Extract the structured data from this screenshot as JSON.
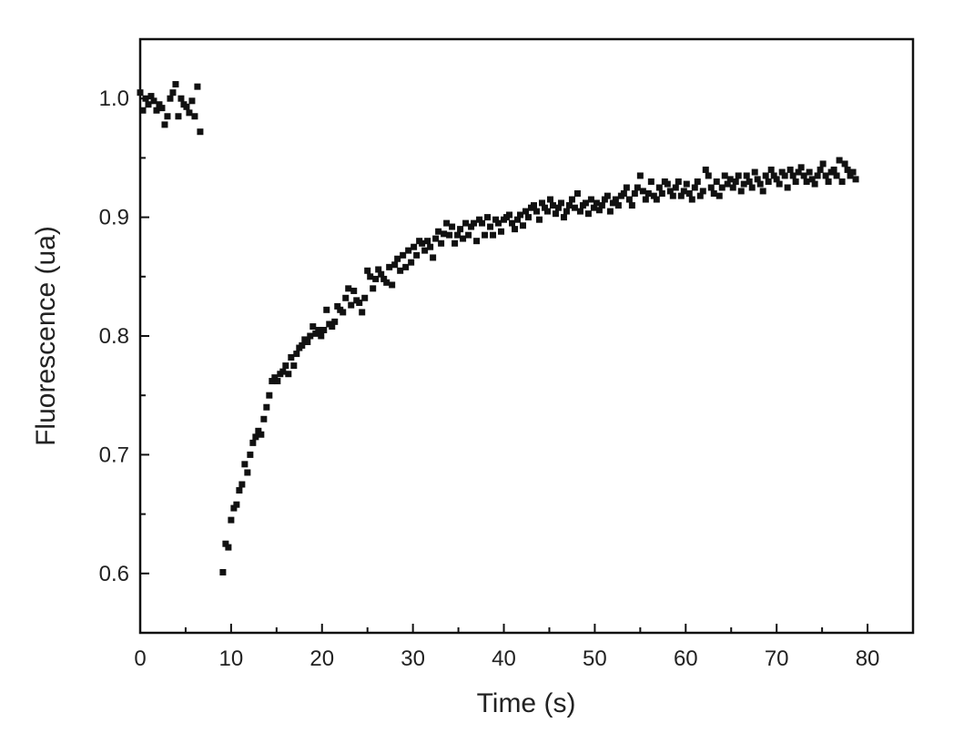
{
  "chart_data": {
    "type": "scatter",
    "title": "",
    "xlabel": "Time (s)",
    "ylabel": "Fluorescence (ua)",
    "xlim": [
      0,
      85
    ],
    "ylim": [
      0.55,
      1.05
    ],
    "x_ticks": [
      0,
      10,
      20,
      30,
      40,
      50,
      60,
      70,
      80
    ],
    "x_tick_labels": [
      "0",
      "10",
      "20",
      "30",
      "40",
      "50",
      "60",
      "70",
      "80"
    ],
    "x_minor_ticks": [
      5,
      15,
      25,
      35,
      45,
      55,
      65,
      75,
      85
    ],
    "y_ticks": [
      0.6,
      0.7,
      0.8,
      0.9,
      1.0
    ],
    "y_tick_labels": [
      "0.6",
      "0.7",
      "0.8",
      "0.9",
      "1.0"
    ],
    "y_minor_ticks": [
      0.65,
      0.75,
      0.85,
      0.95
    ],
    "grid": false,
    "legend": "none",
    "marker": "square",
    "marker_color": "#111111",
    "series": [
      {
        "x": [
          0.0,
          0.3,
          0.6,
          0.9,
          1.2,
          1.5,
          1.8,
          2.1,
          2.4,
          2.7,
          3.0,
          3.3,
          3.6,
          3.9,
          4.2,
          4.5,
          4.8,
          5.1,
          5.4,
          5.7,
          6.0,
          6.3,
          6.6,
          9.1,
          9.4,
          9.7,
          10.0,
          10.3,
          10.6,
          10.9,
          11.2,
          11.5,
          11.8,
          12.1,
          12.4,
          12.7,
          13.0,
          13.3,
          13.6,
          13.9,
          14.2,
          14.5,
          14.8,
          15.1,
          15.4,
          15.7,
          16.0,
          16.3,
          16.6,
          16.9,
          17.2,
          17.5,
          17.8,
          18.1,
          18.4,
          18.7,
          19.0,
          19.3,
          19.6,
          19.9,
          20.2,
          20.5,
          20.8,
          21.1,
          21.4,
          21.7,
          22.0,
          22.3,
          22.6,
          22.9,
          23.2,
          23.5,
          23.8,
          24.1,
          24.4,
          24.7,
          25.0,
          25.3,
          25.6,
          25.9,
          26.2,
          26.5,
          26.8,
          27.1,
          27.4,
          27.7,
          28.0,
          28.3,
          28.6,
          28.9,
          29.2,
          29.5,
          29.8,
          30.1,
          30.4,
          30.7,
          31.0,
          31.3,
          31.6,
          31.9,
          32.2,
          32.5,
          32.8,
          33.1,
          33.4,
          33.7,
          34.0,
          34.3,
          34.6,
          34.9,
          35.2,
          35.5,
          35.8,
          36.1,
          36.4,
          36.7,
          37.0,
          37.3,
          37.6,
          37.9,
          38.2,
          38.5,
          38.8,
          39.1,
          39.4,
          39.7,
          40.0,
          40.3,
          40.6,
          40.9,
          41.2,
          41.5,
          41.8,
          42.1,
          42.4,
          42.7,
          43.0,
          43.3,
          43.6,
          43.9,
          44.2,
          44.5,
          44.8,
          45.1,
          45.4,
          45.7,
          46.0,
          46.3,
          46.6,
          46.9,
          47.2,
          47.5,
          47.8,
          48.1,
          48.4,
          48.7,
          49.0,
          49.3,
          49.6,
          49.9,
          50.2,
          50.5,
          50.8,
          51.1,
          51.4,
          51.7,
          52.0,
          52.3,
          52.6,
          52.9,
          53.2,
          53.5,
          53.8,
          54.1,
          54.4,
          54.7,
          55.0,
          55.3,
          55.6,
          55.9,
          56.2,
          56.5,
          56.8,
          57.1,
          57.4,
          57.7,
          58.0,
          58.3,
          58.6,
          58.9,
          59.2,
          59.5,
          59.8,
          60.1,
          60.4,
          60.7,
          61.0,
          61.3,
          61.6,
          61.9,
          62.2,
          62.5,
          62.8,
          63.1,
          63.4,
          63.7,
          64.0,
          64.3,
          64.6,
          64.9,
          65.2,
          65.5,
          65.8,
          66.1,
          66.4,
          66.7,
          67.0,
          67.3,
          67.6,
          67.9,
          68.2,
          68.5,
          68.8,
          69.1,
          69.4,
          69.7,
          70.0,
          70.3,
          70.6,
          70.9,
          71.2,
          71.5,
          71.8,
          72.1,
          72.4,
          72.7,
          73.0,
          73.3,
          73.6,
          73.9,
          74.2,
          74.5,
          74.8,
          75.1,
          75.4,
          75.7,
          76.0,
          76.3,
          76.6,
          76.9,
          77.2,
          77.5,
          77.8,
          78.1,
          78.4,
          78.7
        ],
        "y": [
          1.005,
          0.99,
          1.0,
          0.995,
          1.002,
          0.998,
          0.99,
          0.995,
          0.992,
          0.978,
          0.985,
          1.0,
          1.005,
          1.012,
          0.985,
          1.0,
          0.995,
          0.993,
          0.988,
          0.998,
          0.985,
          1.01,
          0.972,
          0.601,
          0.625,
          0.622,
          0.645,
          0.655,
          0.658,
          0.67,
          0.675,
          0.692,
          0.685,
          0.7,
          0.71,
          0.715,
          0.72,
          0.717,
          0.73,
          0.74,
          0.75,
          0.762,
          0.765,
          0.762,
          0.768,
          0.77,
          0.775,
          0.768,
          0.782,
          0.775,
          0.785,
          0.79,
          0.792,
          0.797,
          0.795,
          0.8,
          0.808,
          0.802,
          0.805,
          0.8,
          0.805,
          0.822,
          0.81,
          0.808,
          0.812,
          0.825,
          0.822,
          0.82,
          0.832,
          0.84,
          0.826,
          0.838,
          0.83,
          0.828,
          0.82,
          0.832,
          0.855,
          0.85,
          0.84,
          0.848,
          0.856,
          0.852,
          0.848,
          0.845,
          0.858,
          0.843,
          0.86,
          0.865,
          0.855,
          0.868,
          0.858,
          0.872,
          0.862,
          0.875,
          0.868,
          0.88,
          0.878,
          0.872,
          0.88,
          0.875,
          0.866,
          0.882,
          0.888,
          0.878,
          0.886,
          0.895,
          0.885,
          0.892,
          0.878,
          0.885,
          0.89,
          0.882,
          0.895,
          0.885,
          0.892,
          0.895,
          0.88,
          0.898,
          0.895,
          0.885,
          0.9,
          0.892,
          0.885,
          0.898,
          0.895,
          0.888,
          0.898,
          0.9,
          0.902,
          0.895,
          0.89,
          0.898,
          0.902,
          0.893,
          0.905,
          0.9,
          0.908,
          0.91,
          0.905,
          0.898,
          0.912,
          0.908,
          0.905,
          0.915,
          0.91,
          0.903,
          0.908,
          0.912,
          0.9,
          0.905,
          0.91,
          0.915,
          0.908,
          0.92,
          0.905,
          0.91,
          0.912,
          0.903,
          0.915,
          0.908,
          0.912,
          0.906,
          0.91,
          0.915,
          0.918,
          0.905,
          0.912,
          0.915,
          0.91,
          0.918,
          0.92,
          0.925,
          0.915,
          0.91,
          0.92,
          0.925,
          0.935,
          0.922,
          0.915,
          0.92,
          0.93,
          0.918,
          0.915,
          0.925,
          0.92,
          0.93,
          0.928,
          0.922,
          0.918,
          0.925,
          0.93,
          0.918,
          0.922,
          0.928,
          0.92,
          0.915,
          0.925,
          0.93,
          0.918,
          0.922,
          0.94,
          0.935,
          0.925,
          0.92,
          0.93,
          0.918,
          0.925,
          0.935,
          0.928,
          0.932,
          0.925,
          0.93,
          0.935,
          0.922,
          0.928,
          0.935,
          0.93,
          0.925,
          0.938,
          0.932,
          0.928,
          0.922,
          0.935,
          0.93,
          0.94,
          0.935,
          0.932,
          0.928,
          0.938,
          0.935,
          0.925,
          0.94,
          0.935,
          0.93,
          0.938,
          0.942,
          0.935,
          0.93,
          0.938,
          0.932,
          0.928,
          0.935,
          0.94,
          0.945,
          0.935,
          0.93,
          0.938,
          0.94,
          0.935,
          0.948,
          0.93,
          0.945,
          0.94,
          0.935,
          0.938,
          0.932
        ]
      }
    ]
  }
}
